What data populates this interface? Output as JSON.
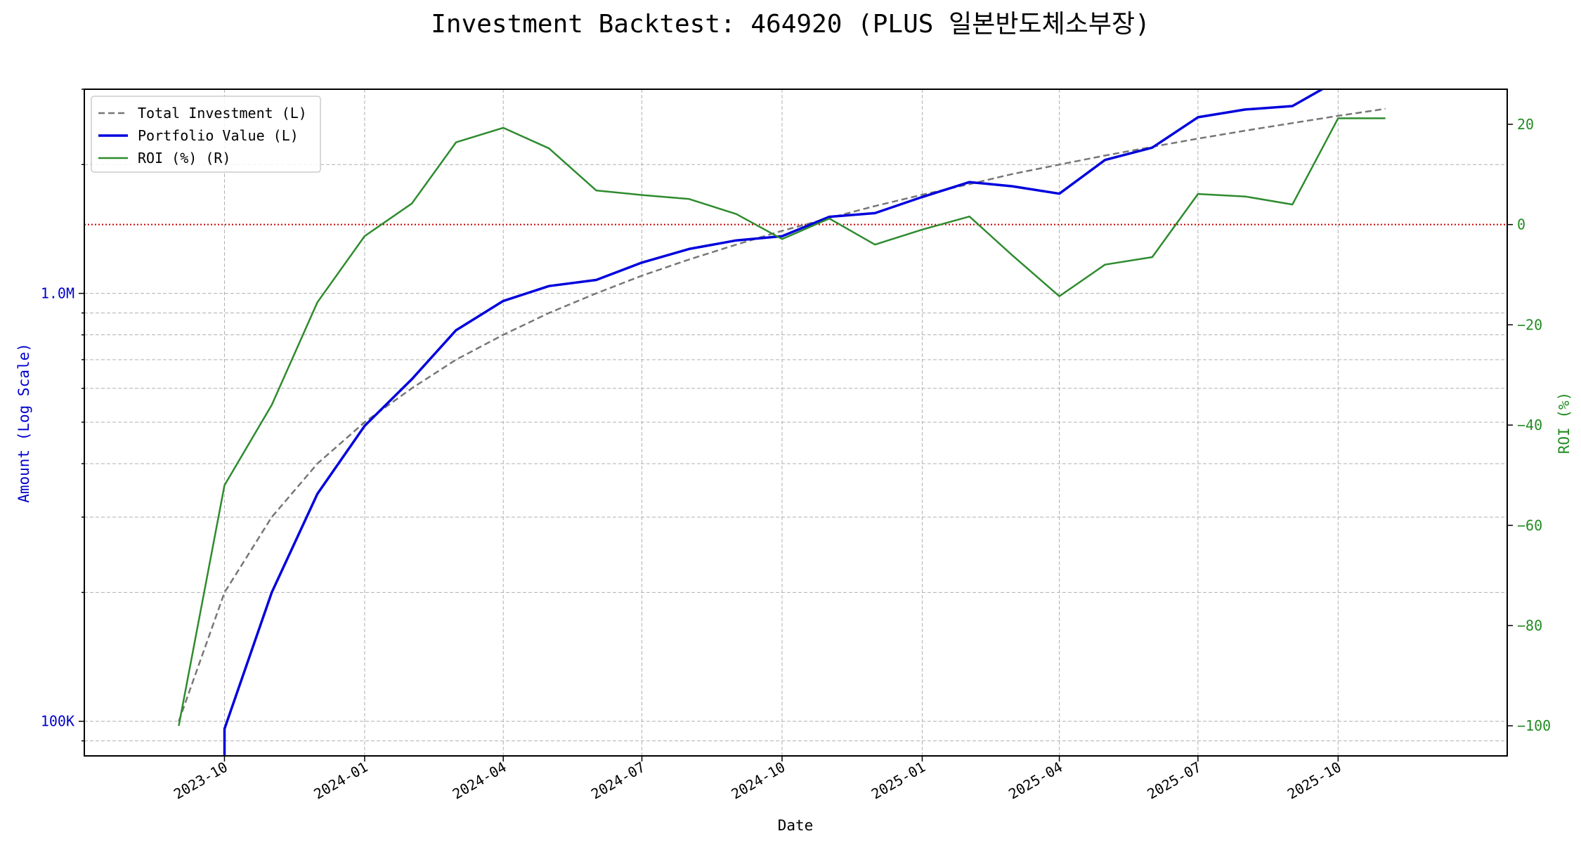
{
  "chart_data": {
    "type": "line",
    "title": "Investment Backtest: 464920 (PLUS 일본반도체소부장)",
    "xlabel": "Date",
    "ylabel_left": "Amount (Log Scale)",
    "ylabel_right": "ROI (%)",
    "left_axis": {
      "scale": "log",
      "ylim": [
        83000,
        3000000
      ],
      "major_ticks": [
        {
          "v": 100000,
          "label": "100K"
        },
        {
          "v": 1000000,
          "label": "1.0M"
        }
      ]
    },
    "right_axis": {
      "scale": "linear",
      "ylim": [
        -106,
        27
      ],
      "ticks": [
        -100,
        -80,
        -60,
        -40,
        -20,
        0,
        20
      ]
    },
    "x_range": [
      "2023-07-01",
      "2026-01-20"
    ],
    "x_ticks": [
      "2023-10",
      "2024-01",
      "2024-04",
      "2024-07",
      "2024-10",
      "2025-01",
      "2025-04",
      "2025-07",
      "2025-10"
    ],
    "zero_line": {
      "axis": "right",
      "value": 0,
      "color": "#cc0000"
    },
    "grid": true,
    "legend": {
      "placement": "top-left"
    },
    "colors": {
      "left_axis": "#0000cc",
      "right_axis": "#228b22"
    },
    "series": [
      {
        "name": "Total Investment (L)",
        "axis": "left",
        "color": "#777777",
        "style": "dashed",
        "x": [
          "2023-09-01",
          "2023-10-01",
          "2023-11-01",
          "2023-12-01",
          "2024-01-01",
          "2024-02-01",
          "2024-03-01",
          "2024-04-01",
          "2024-05-01",
          "2024-06-01",
          "2024-07-01",
          "2024-08-01",
          "2024-09-01",
          "2024-10-01",
          "2024-11-01",
          "2024-12-01",
          "2025-01-01",
          "2025-02-01",
          "2025-03-01",
          "2025-04-01",
          "2025-05-01",
          "2025-06-01",
          "2025-07-01",
          "2025-08-01",
          "2025-09-01",
          "2025-10-01",
          "2025-11-01"
        ],
        "values": [
          100000,
          200000,
          300000,
          400000,
          500000,
          600000,
          700000,
          800000,
          900000,
          1000000,
          1100000,
          1200000,
          1300000,
          1400000,
          1500000,
          1600000,
          1700000,
          1800000,
          1900000,
          2000000,
          2100000,
          2200000,
          2300000,
          2400000,
          2500000,
          2600000,
          2700000
        ]
      },
      {
        "name": "Portfolio Value (L)",
        "axis": "left",
        "color": "#0000dd",
        "style": "solid",
        "x": [
          "2023-10-01",
          "2023-10-01",
          "2023-11-01",
          "2023-12-01",
          "2024-01-01",
          "2024-02-01",
          "2024-03-01",
          "2024-04-01",
          "2024-05-01",
          "2024-06-01",
          "2024-07-01",
          "2024-08-01",
          "2024-09-01",
          "2024-10-01",
          "2024-11-01",
          "2024-12-01",
          "2025-01-01",
          "2025-02-01",
          "2025-03-01",
          "2025-04-01",
          "2025-05-01",
          "2025-06-01",
          "2025-07-01",
          "2025-08-01",
          "2025-09-01",
          "2025-10-01",
          "2025-11-01"
        ],
        "values": [
          80000,
          96000,
          200000,
          340000,
          490000,
          630000,
          820000,
          960000,
          1040000,
          1075000,
          1180000,
          1270000,
          1330000,
          1360000,
          1510000,
          1540000,
          1680000,
          1820000,
          1780000,
          1710000,
          2050000,
          2190000,
          2580000,
          2690000,
          2740000,
          3150000,
          3250000
        ]
      },
      {
        "name": "ROI (%) (R)",
        "axis": "right",
        "color": "#2e8b2e",
        "style": "solid",
        "x": [
          "2023-09-01",
          "2023-10-01",
          "2023-11-01",
          "2023-12-01",
          "2024-01-01",
          "2024-02-01",
          "2024-03-01",
          "2024-04-01",
          "2024-05-01",
          "2024-06-01",
          "2024-07-01",
          "2024-08-01",
          "2024-09-01",
          "2024-10-01",
          "2024-11-01",
          "2024-12-01",
          "2025-01-01",
          "2025-02-01",
          "2025-03-01",
          "2025-04-01",
          "2025-05-01",
          "2025-06-01",
          "2025-07-01",
          "2025-08-01",
          "2025-09-01",
          "2025-10-01",
          "2025-11-01"
        ],
        "values": [
          -100,
          -52,
          -36,
          -15.5,
          -2.3,
          4.2,
          16.4,
          19.3,
          15.2,
          6.8,
          5.9,
          5.1,
          2.1,
          -2.9,
          1.2,
          -4,
          -1,
          1.6,
          -6.1,
          -14.3,
          -8,
          -6.5,
          6.1,
          5.6,
          4,
          21.2,
          21.2
        ]
      }
    ]
  }
}
